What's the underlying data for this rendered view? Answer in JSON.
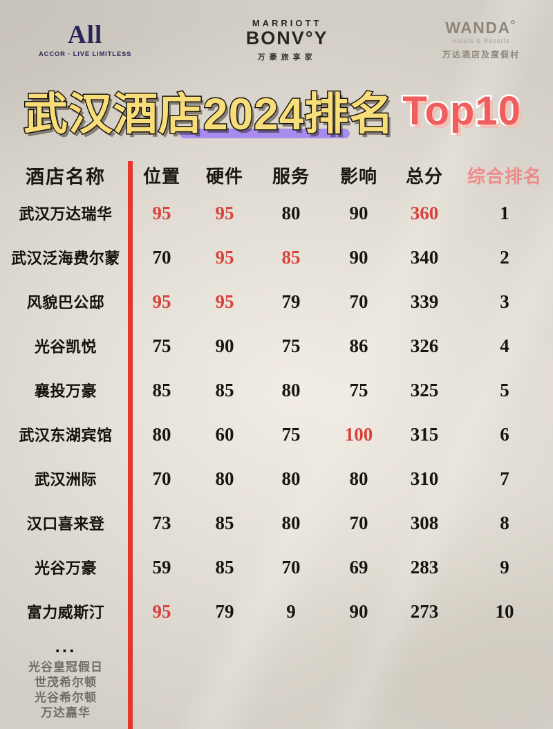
{
  "brand_bar": {
    "accor": {
      "wordmark": "All",
      "tagline": "ACCOR · LIVE LIMITLESS"
    },
    "marriott": {
      "name": "MARRIOTT",
      "wordmark": "BONV°Y",
      "tagline": "万豪旅享家"
    },
    "wanda": {
      "wordmark": "WANDA˚",
      "subtitle": "Hotels & Resorts",
      "tagline": "万达酒店及度假村"
    }
  },
  "title": {
    "main": "武汉酒店2024排名",
    "highlight": "Top10"
  },
  "table": {
    "name_header": "酒店名称",
    "columns": [
      "位置",
      "硬件",
      "服务",
      "影响",
      "总分",
      "综合排名"
    ],
    "rows": [
      {
        "name": "武汉万达瑞华",
        "cells": [
          {
            "text": "95",
            "accent": true
          },
          {
            "text": "95",
            "accent": true
          },
          {
            "text": "80",
            "accent": false
          },
          {
            "text": "90",
            "accent": false
          },
          {
            "text": "360",
            "accent": true
          }
        ],
        "rank": "1"
      },
      {
        "name": "武汉泛海费尔蒙",
        "cells": [
          {
            "text": "70",
            "accent": false
          },
          {
            "text": "95",
            "accent": true
          },
          {
            "text": "85",
            "accent": true
          },
          {
            "text": "90",
            "accent": false
          },
          {
            "text": "340",
            "accent": false
          }
        ],
        "rank": "2"
      },
      {
        "name": "风貌巴公邸",
        "cells": [
          {
            "text": "95",
            "accent": true
          },
          {
            "text": "95",
            "accent": true
          },
          {
            "text": "79",
            "accent": false
          },
          {
            "text": "70",
            "accent": false
          },
          {
            "text": "339",
            "accent": false
          }
        ],
        "rank": "3"
      },
      {
        "name": "光谷凯悦",
        "cells": [
          {
            "text": "75",
            "accent": false
          },
          {
            "text": "90",
            "accent": false
          },
          {
            "text": "75",
            "accent": false
          },
          {
            "text": "86",
            "accent": false
          },
          {
            "text": "326",
            "accent": false
          }
        ],
        "rank": "4"
      },
      {
        "name": "襄投万豪",
        "cells": [
          {
            "text": "85",
            "accent": false
          },
          {
            "text": "85",
            "accent": false
          },
          {
            "text": "80",
            "accent": false
          },
          {
            "text": "75",
            "accent": false
          },
          {
            "text": "325",
            "accent": false
          }
        ],
        "rank": "5"
      },
      {
        "name": "武汉东湖宾馆",
        "cells": [
          {
            "text": "80",
            "accent": false
          },
          {
            "text": "60",
            "accent": false
          },
          {
            "text": "75",
            "accent": false
          },
          {
            "text": "100",
            "accent": true
          },
          {
            "text": "315",
            "accent": false
          }
        ],
        "rank": "6"
      },
      {
        "name": "武汉洲际",
        "cells": [
          {
            "text": "70",
            "accent": false
          },
          {
            "text": "80",
            "accent": false
          },
          {
            "text": "80",
            "accent": false
          },
          {
            "text": "80",
            "accent": false
          },
          {
            "text": "310",
            "accent": false
          }
        ],
        "rank": "7"
      },
      {
        "name": "汉口喜来登",
        "cells": [
          {
            "text": "73",
            "accent": false
          },
          {
            "text": "85",
            "accent": false
          },
          {
            "text": "80",
            "accent": false
          },
          {
            "text": "70",
            "accent": false
          },
          {
            "text": "308",
            "accent": false
          }
        ],
        "rank": "8"
      },
      {
        "name": "光谷万豪",
        "cells": [
          {
            "text": "59",
            "accent": false
          },
          {
            "text": "85",
            "accent": false
          },
          {
            "text": "70",
            "accent": false
          },
          {
            "text": "69",
            "accent": false
          },
          {
            "text": "283",
            "accent": false
          }
        ],
        "rank": "9"
      },
      {
        "name": "富力威斯汀",
        "cells": [
          {
            "text": "95",
            "accent": true
          },
          {
            "text": "79",
            "accent": false
          },
          {
            "text": "9",
            "accent": false
          },
          {
            "text": "90",
            "accent": false
          },
          {
            "text": "273",
            "accent": false
          }
        ],
        "rank": "10"
      }
    ],
    "ellipsis": "..."
  },
  "footer_hotels": [
    "光谷皇冠假日",
    "世茂希尔顿",
    "光谷希尔顿",
    "万达嘉华"
  ],
  "colors": {
    "accent_red": "#d8423b",
    "bar_red": "#e5362e",
    "rank_header_pink": "#ee8b8b",
    "title_yellow": "#f8de7a",
    "title_top10_red": "#f05d5d",
    "underline_purple": "#a68cef",
    "accor_navy": "#2a2558"
  },
  "chart_data": {
    "type": "table",
    "title": "武汉酒店2024排名 Top10",
    "columns": [
      "酒店名称",
      "位置",
      "硬件",
      "服务",
      "影响",
      "总分",
      "综合排名"
    ],
    "rows": [
      [
        "武汉万达瑞华",
        95,
        95,
        80,
        90,
        360,
        1
      ],
      [
        "武汉泛海费尔蒙",
        70,
        95,
        85,
        90,
        340,
        2
      ],
      [
        "风貌巴公邸",
        95,
        95,
        79,
        70,
        339,
        3
      ],
      [
        "光谷凯悦",
        75,
        90,
        75,
        86,
        326,
        4
      ],
      [
        "襄投万豪",
        85,
        85,
        80,
        75,
        325,
        5
      ],
      [
        "武汉东湖宾馆",
        80,
        60,
        75,
        100,
        315,
        6
      ],
      [
        "武汉洲际",
        70,
        80,
        80,
        80,
        310,
        7
      ],
      [
        "汉口喜来登",
        73,
        85,
        80,
        70,
        308,
        8
      ],
      [
        "光谷万豪",
        59,
        85,
        70,
        69,
        283,
        9
      ],
      [
        "富力威斯汀",
        95,
        79,
        9,
        90,
        273,
        10
      ]
    ],
    "notes_below_table": [
      "光谷皇冠假日",
      "世茂希尔顿",
      "光谷希尔顿",
      "万达嘉华"
    ]
  }
}
